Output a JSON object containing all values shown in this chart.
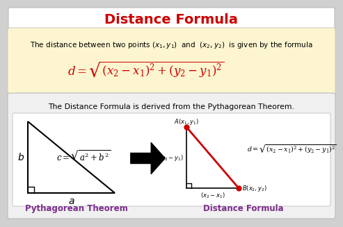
{
  "title": "Distance Formula",
  "title_color": "#cc0000",
  "bg_color": "#d0d0d0",
  "top_box_color": "#fdf5d0",
  "bottom_box_color": "#f0f0f0",
  "inner_box_color": "#ffffff",
  "text_color": "#000000",
  "purple_color": "#7B2D8B",
  "red_color": "#cc0000",
  "top_text": "The distance between two points $(x_1, y_1)$  and  $(x_2, y_2)$  is given by the formula",
  "top_formula": "$d = \\sqrt{(x_2 - x_1)^2 + (y_2 - y_1)^2}$",
  "bottom_text": "The Distance Formula is derived from the Pythagorean Theorem.",
  "pyth_label": "Pythagorean Theorem",
  "dist_label": "Distance Formula",
  "pyth_formula": "$c = \\sqrt{a^2 + b^2}$",
  "dist_formula": "$d = \\sqrt{(x_2 - x_1)^2 + (y_2 - y_1)^2}$"
}
